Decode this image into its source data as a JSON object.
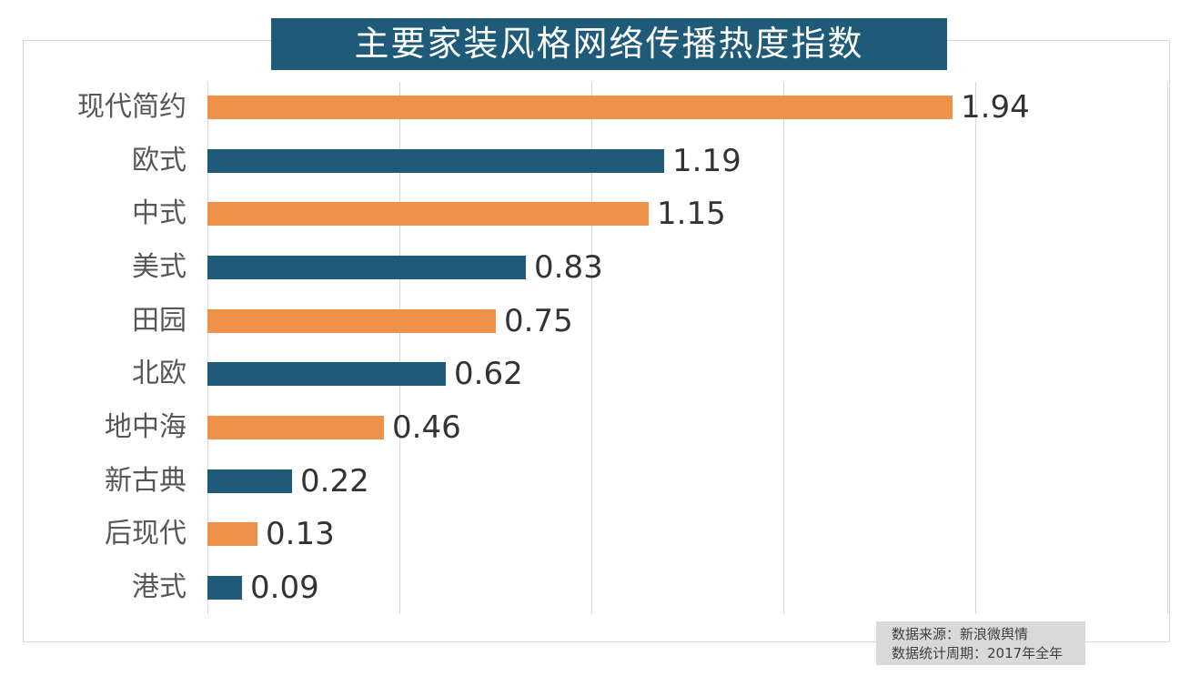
{
  "title": "主要家装风格网络传播热度指数",
  "source": {
    "line1": "数据来源：新浪微舆情",
    "line2": "数据统计周期：2017年全年"
  },
  "colors": {
    "orange": "#EF9249",
    "blue": "#1F5B78",
    "title_bg": "#1F5B78",
    "title_text": "#FFFFFF",
    "grid": "#D9D9D9",
    "frame": "#D9D9D9",
    "category_label_text": "#575757",
    "value_label_text": "#333333",
    "source_bg": "#D9D9D9",
    "source_text": "#404040"
  },
  "chart_data": {
    "type": "bar",
    "orientation": "horizontal",
    "title": "主要家装风格网络传播热度指数",
    "categories": [
      "现代简约",
      "欧式",
      "中式",
      "美式",
      "田园",
      "北欧",
      "地中海",
      "新古典",
      "后现代",
      "港式"
    ],
    "values": [
      1.94,
      1.19,
      1.15,
      0.83,
      0.75,
      0.62,
      0.46,
      0.22,
      0.13,
      0.09
    ],
    "value_labels": [
      "1.94",
      "1.19",
      "1.15",
      "0.83",
      "0.75",
      "0.62",
      "0.46",
      "0.22",
      "0.13",
      "0.09"
    ],
    "bar_color_pattern": [
      "orange",
      "blue"
    ],
    "xlabel": "",
    "ylabel": "",
    "xlim": [
      0,
      2.5
    ],
    "gridline_step": 0.5,
    "grid": true,
    "legend": false,
    "sorted": "descending"
  }
}
